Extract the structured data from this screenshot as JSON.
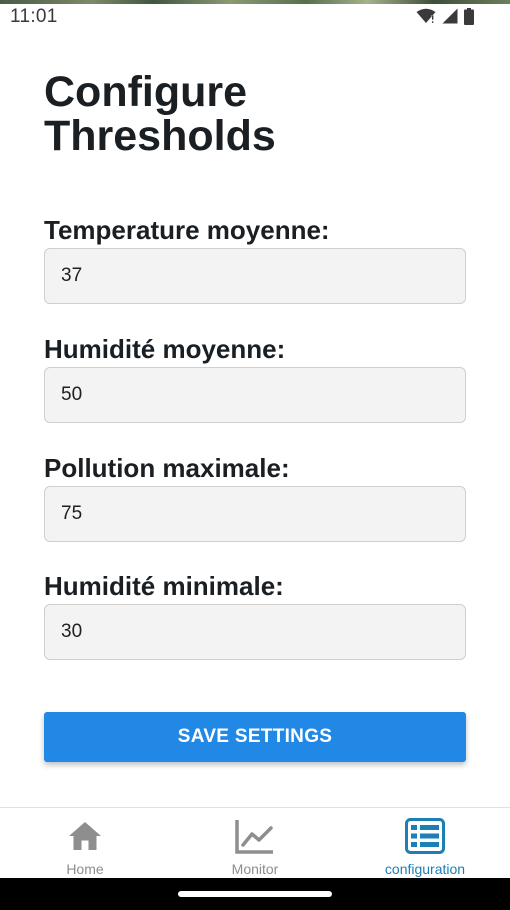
{
  "status_bar": {
    "time": "11:01",
    "icons": [
      "wifi-alert-icon",
      "cell-signal-icon",
      "battery-icon"
    ]
  },
  "page": {
    "title": "Configure Thresholds"
  },
  "form": {
    "fields": [
      {
        "label": "Temperature moyenne:",
        "value": "37"
      },
      {
        "label": "Humidité moyenne:",
        "value": "50"
      },
      {
        "label": "Pollution maximale:",
        "value": "75"
      },
      {
        "label": "Humidité minimale:",
        "value": "30"
      }
    ],
    "save_label": "SAVE SETTINGS"
  },
  "tabs": [
    {
      "label": "Home",
      "icon": "home-icon",
      "active": false
    },
    {
      "label": "Monitor",
      "icon": "line-chart-icon",
      "active": false
    },
    {
      "label": "configuration",
      "icon": "list-settings-icon",
      "active": true
    }
  ],
  "colors": {
    "primary": "#2188e5",
    "active_tab": "#1c7fb5",
    "inactive_tab": "#8e8e8e",
    "text": "#1a1f24",
    "input_bg": "#f3f3f3"
  }
}
